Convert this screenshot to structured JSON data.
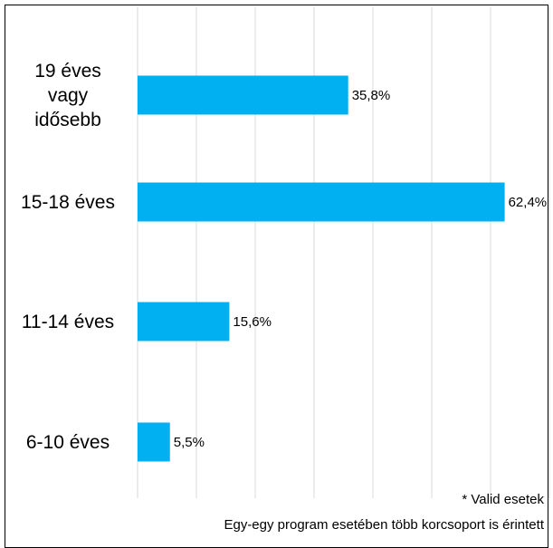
{
  "chart_data": {
    "type": "bar",
    "orientation": "horizontal",
    "categories": [
      "19 éves vagy idősebb",
      "15-18 éves",
      "11-14 éves",
      "6-10 éves"
    ],
    "category_lines": [
      [
        "19 éves",
        "vagy",
        "idősebb"
      ],
      [
        "15-18 éves"
      ],
      [
        "11-14 éves"
      ],
      [
        "6-10 éves"
      ]
    ],
    "values": [
      35.8,
      62.4,
      15.6,
      5.5
    ],
    "data_labels": [
      "35,8%",
      "62,4%",
      "15,6%",
      "5,5%"
    ],
    "unit": "%",
    "xlim": [
      0,
      70
    ],
    "grid": true,
    "bar_color": "#00b0f0",
    "grid_color": "#d9d9d9"
  },
  "notes": {
    "valid": "* Valid esetek",
    "multi": "Egy-egy program esetében több korcsoport is érintett"
  }
}
